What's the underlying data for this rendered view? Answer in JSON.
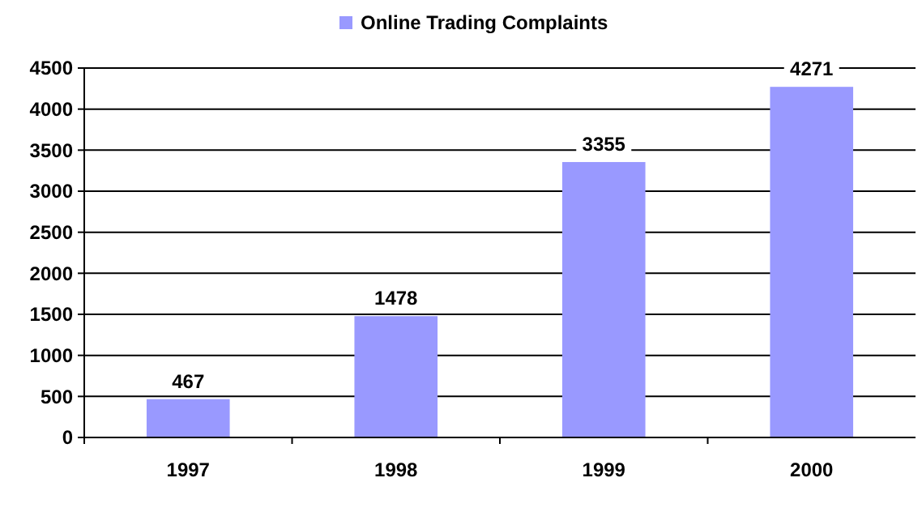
{
  "chart_data": {
    "type": "bar",
    "categories": [
      "1997",
      "1998",
      "1999",
      "2000"
    ],
    "series": [
      {
        "name": "Online Trading Complaints",
        "color": "#9999ff",
        "values": [
          467,
          1478,
          3355,
          4271
        ]
      }
    ],
    "ylim": [
      0,
      4500
    ],
    "yticks": [
      0,
      500,
      1000,
      1500,
      2000,
      2500,
      3000,
      3500,
      4000,
      4500
    ],
    "grid": "y",
    "legend": "top",
    "data_labels": true
  }
}
